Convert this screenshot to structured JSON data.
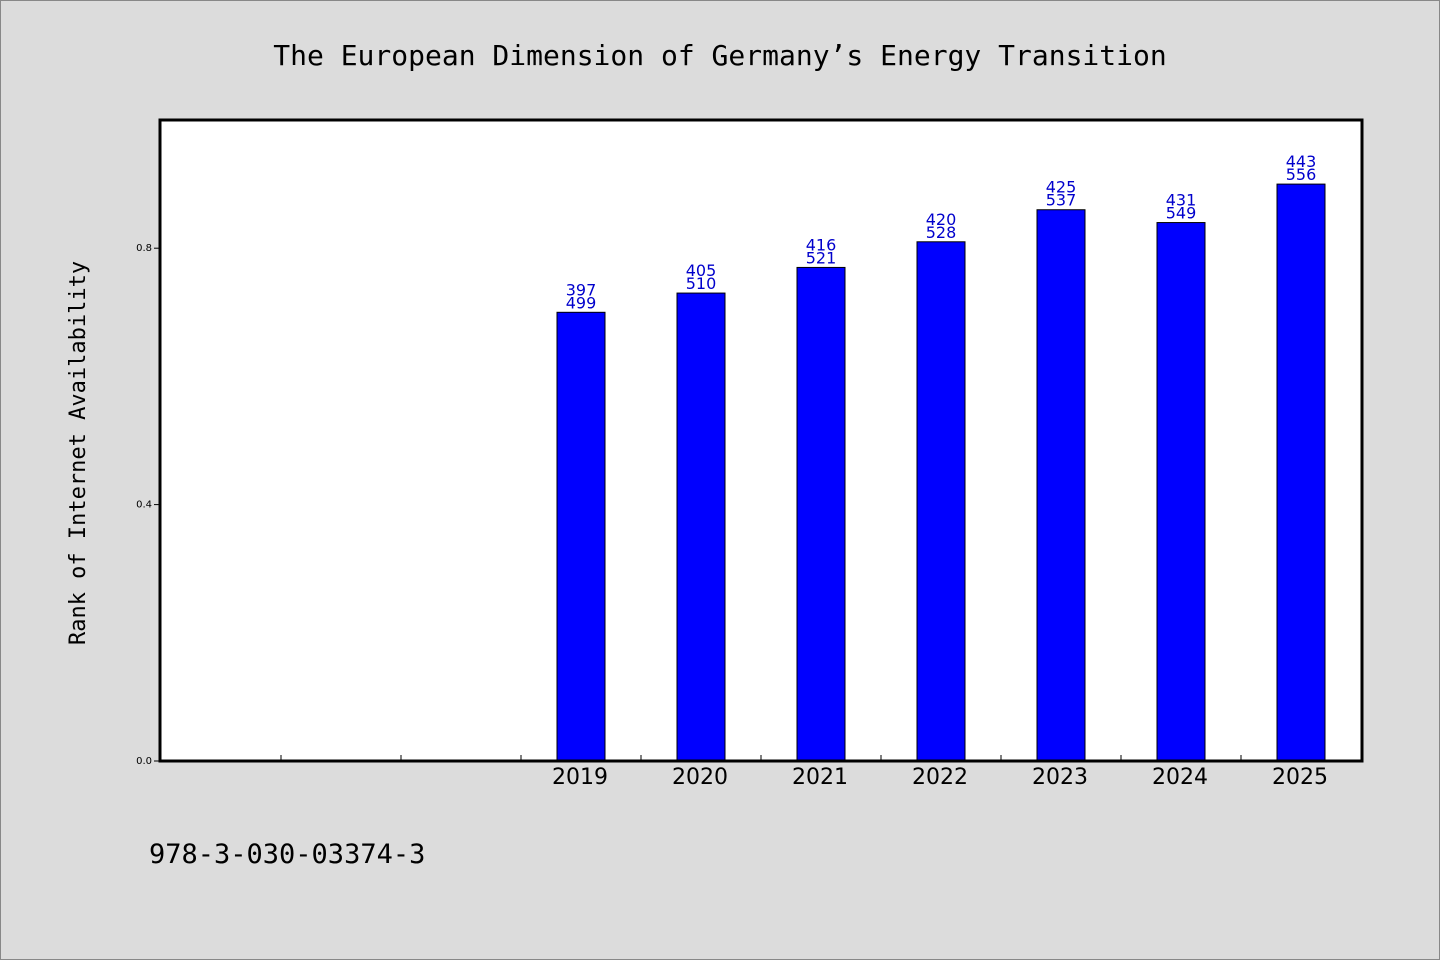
{
  "chart_data": {
    "type": "bar",
    "title": "The European Dimension of Germany’s Energy Transition",
    "ylabel": "Rank of Internet Availability",
    "xlabel": "",
    "ylim": [
      0,
      1.0
    ],
    "yticks": [
      0.0,
      0.4,
      0.8
    ],
    "ytick_labels": [
      "0.0",
      "0.4",
      "0.8"
    ],
    "categories": [
      "2019",
      "2020",
      "2021",
      "2022",
      "2023",
      "2024",
      "2025"
    ],
    "values": [
      0.7,
      0.73,
      0.77,
      0.81,
      0.86,
      0.84,
      0.9
    ],
    "data_labels_top": [
      "397",
      "405",
      "416",
      "420",
      "425",
      "431",
      "443"
    ],
    "data_labels_bottom": [
      "499",
      "510",
      "521",
      "528",
      "537",
      "549",
      "556"
    ],
    "empty_leading_slots": 3,
    "grid": false,
    "legend": "none",
    "bar_color": "#0000ff",
    "label_color": "#0000cc"
  },
  "footer": {
    "isbn": "978-3-030-03374-3"
  }
}
